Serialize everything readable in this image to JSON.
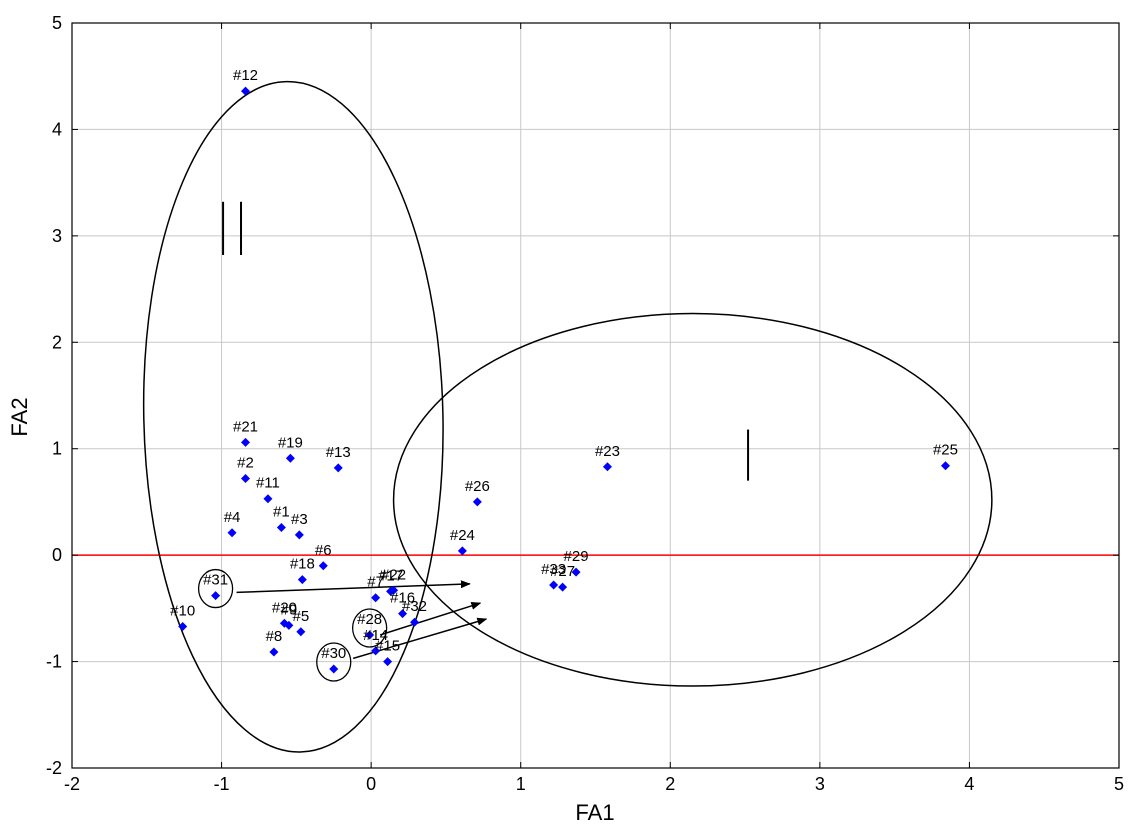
{
  "chart_data": {
    "type": "scatter",
    "title": "",
    "xlabel": "FA1",
    "ylabel": "FA2",
    "xlim": [
      -2,
      5
    ],
    "ylim": [
      -2,
      5
    ],
    "x_ticks": [
      -2,
      -1,
      0,
      1,
      2,
      3,
      4,
      5
    ],
    "y_ticks": [
      -2,
      -1,
      0,
      1,
      2,
      3,
      4,
      5
    ],
    "grid": true,
    "reference_line": {
      "y": 0,
      "color": "#ff0000"
    },
    "marker_color": "#0000ff",
    "marker": "diamond",
    "points": [
      {
        "label": "#1",
        "x": -0.6,
        "y": 0.26
      },
      {
        "label": "#2",
        "x": -0.84,
        "y": 0.72
      },
      {
        "label": "#3",
        "x": -0.48,
        "y": 0.19
      },
      {
        "label": "#4",
        "x": -0.93,
        "y": 0.21
      },
      {
        "label": "#5",
        "x": -0.47,
        "y": -0.72
      },
      {
        "label": "#6",
        "x": -0.32,
        "y": -0.1
      },
      {
        "label": "#7",
        "x": 0.03,
        "y": -0.4
      },
      {
        "label": "#8",
        "x": -0.65,
        "y": -0.91
      },
      {
        "label": "#9",
        "x": -0.55,
        "y": -0.66
      },
      {
        "label": "#10",
        "x": -1.26,
        "y": -0.67
      },
      {
        "label": "#11",
        "x": -0.69,
        "y": 0.53
      },
      {
        "label": "#12",
        "x": -0.84,
        "y": 4.36
      },
      {
        "label": "#13",
        "x": -0.22,
        "y": 0.82
      },
      {
        "label": "#14",
        "x": 0.03,
        "y": -0.9
      },
      {
        "label": "#15",
        "x": 0.11,
        "y": -1.0
      },
      {
        "label": "#16",
        "x": 0.21,
        "y": -0.55
      },
      {
        "label": "#17",
        "x": 0.13,
        "y": -0.34
      },
      {
        "label": "#18",
        "x": -0.46,
        "y": -0.23
      },
      {
        "label": "#19",
        "x": -0.54,
        "y": 0.91
      },
      {
        "label": "#20",
        "x": -0.58,
        "y": -0.64
      },
      {
        "label": "#21",
        "x": -0.84,
        "y": 1.06
      },
      {
        "label": "#22",
        "x": 0.15,
        "y": -0.33
      },
      {
        "label": "#23",
        "x": 1.58,
        "y": 0.83
      },
      {
        "label": "#24",
        "x": 0.61,
        "y": 0.04
      },
      {
        "label": "#25",
        "x": 3.84,
        "y": 0.84
      },
      {
        "label": "#26",
        "x": 0.71,
        "y": 0.5
      },
      {
        "label": "#27",
        "x": 1.28,
        "y": -0.3
      },
      {
        "label": "#28",
        "x": -0.01,
        "y": -0.75
      },
      {
        "label": "#29",
        "x": 1.37,
        "y": -0.16
      },
      {
        "label": "#30",
        "x": -0.25,
        "y": -1.07
      },
      {
        "label": "#31",
        "x": -1.04,
        "y": -0.38
      },
      {
        "label": "#32",
        "x": 0.29,
        "y": -0.63
      },
      {
        "label": "#33",
        "x": 1.22,
        "y": -0.28
      }
    ],
    "groups": [
      {
        "label": "II",
        "center": [
          -0.52,
          1.3
        ],
        "rx": 1.0,
        "ry": 3.15,
        "angle": -1.2
      },
      {
        "label": "I",
        "center": [
          2.15,
          0.52
        ],
        "rx": 2.0,
        "ry": 1.75,
        "angle": 0
      }
    ],
    "highlighted": [
      "#31",
      "#28",
      "#30"
    ],
    "arrows": [
      {
        "from": [
          -0.9,
          -0.35
        ],
        "to": [
          0.66,
          -0.27
        ]
      },
      {
        "from": [
          0.06,
          -0.75
        ],
        "to": [
          0.73,
          -0.45
        ]
      },
      {
        "from": [
          -0.12,
          -0.97
        ],
        "to": [
          0.77,
          -0.6
        ]
      }
    ]
  }
}
